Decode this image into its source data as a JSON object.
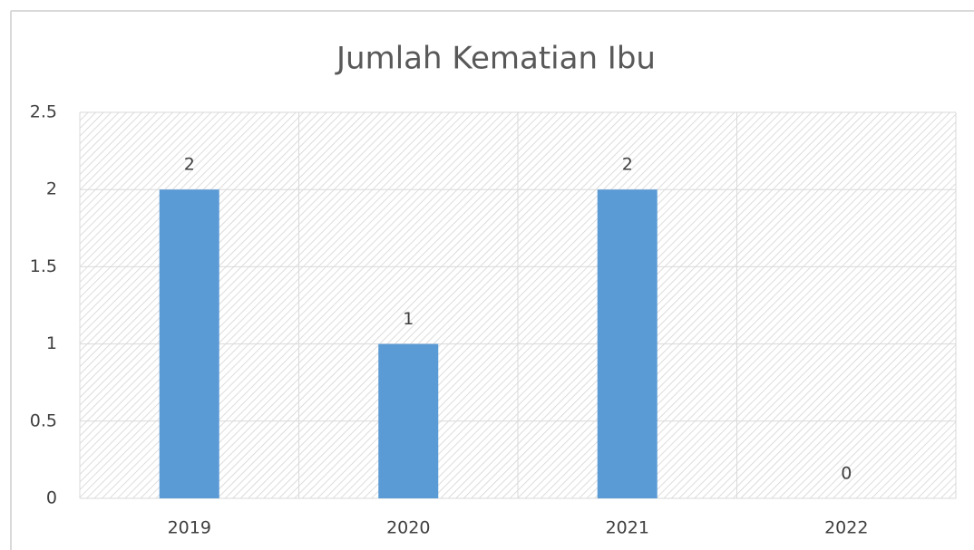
{
  "chart_data": {
    "type": "bar",
    "title": "Jumlah Kematian Ibu",
    "categories": [
      "2019",
      "2020",
      "2021",
      "2022"
    ],
    "values": [
      2,
      1,
      2,
      0
    ],
    "color": "#5b9bd5",
    "ylim": [
      0,
      2.5
    ],
    "yticks": [
      0,
      0.5,
      1,
      1.5,
      2,
      2.5
    ],
    "grid": true
  }
}
